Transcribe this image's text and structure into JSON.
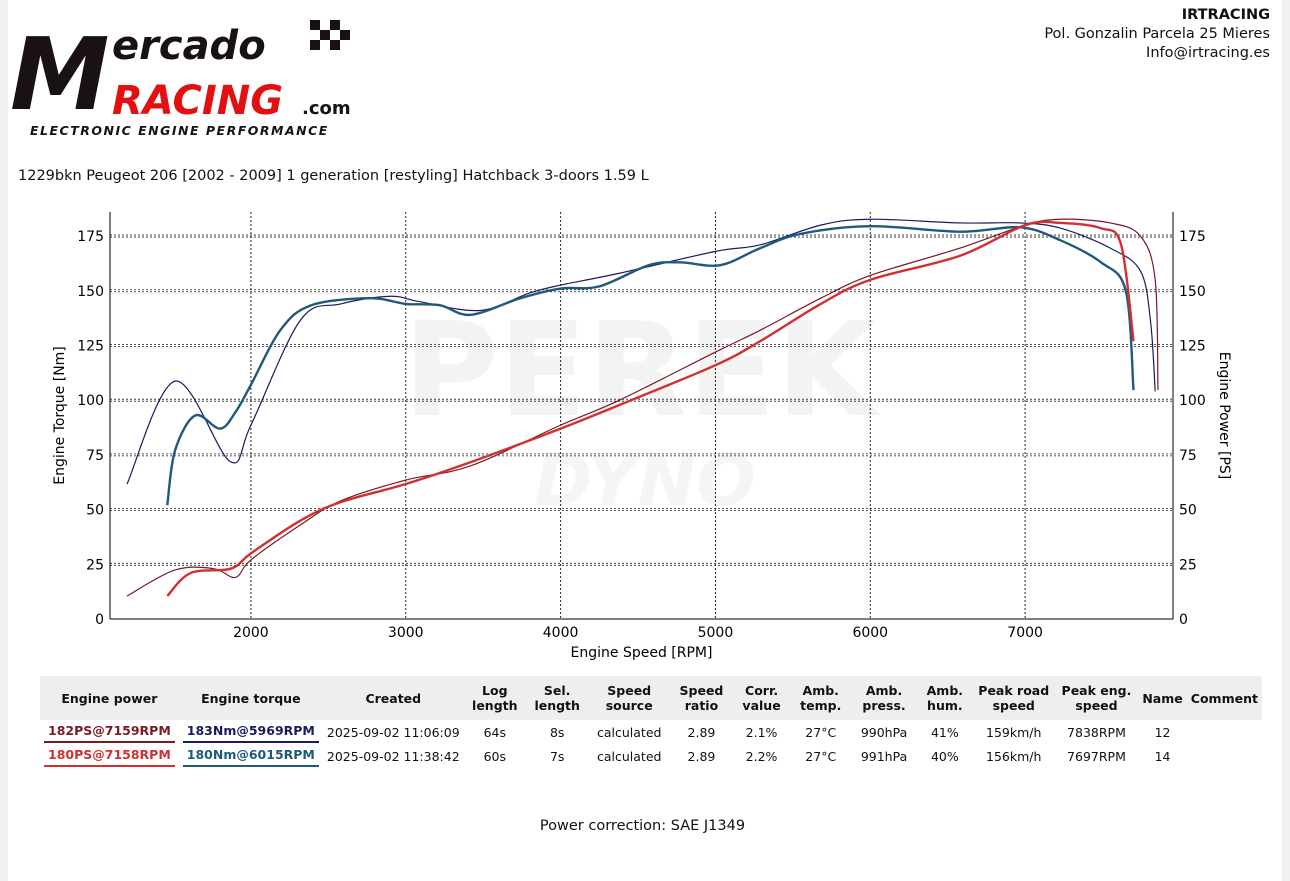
{
  "logo": {
    "text": "Mercado Racing .com",
    "tagline": "ELECTRONIC ENGINE PERFORMANCE"
  },
  "company": {
    "name": "IRTRACING",
    "address": "Pol. Gonzalin Parcela 25 Mieres",
    "email": "Info@irtracing.es"
  },
  "vehicle_title": "1229bkn Peugeot 206 [2002 - 2009] 1 generation [restyling] Hatchback 3-doors 1.59 L",
  "watermark": "PEREK DYNO",
  "chart_data": {
    "type": "line",
    "xlabel": "Engine Speed [RPM]",
    "ylabel_left": "Engine Torque [Nm]",
    "ylabel_right": "Engine Power [PS]",
    "xlim": [
      1090,
      7955
    ],
    "ylim": [
      0,
      186
    ],
    "xticks": [
      2000,
      3000,
      4000,
      5000,
      6000,
      7000
    ],
    "yticks": [
      0,
      25,
      50,
      75,
      100,
      125,
      150,
      175
    ],
    "grid": true,
    "series": [
      {
        "color": "#1a1a5e",
        "run": 1,
        "kind": "torque",
        "x": [
          1200,
          1510,
          1865,
          2000,
          2320,
          2580,
          2900,
          3090,
          3480,
          3800,
          4000,
          4380,
          5000,
          5290,
          5680,
          6000,
          6580,
          6970,
          7230,
          7550,
          7745,
          7810,
          7840
        ],
        "y": [
          61.7,
          108.7,
          72,
          88.6,
          136.6,
          144,
          147.5,
          145,
          141,
          149,
          152.6,
          158,
          168,
          171,
          180,
          182.7,
          181,
          181,
          178.6,
          169.5,
          159,
          136,
          104
        ]
      },
      {
        "color": "#1f5a7a",
        "run": 2,
        "kind": "torque",
        "x": [
          1460,
          1510,
          1640,
          1800,
          1900,
          2000,
          2190,
          2390,
          2770,
          3000,
          3220,
          3420,
          3740,
          4000,
          4250,
          4570,
          4770,
          5030,
          5290,
          5550,
          6000,
          6580,
          6970,
          7230,
          7490,
          7650,
          7700
        ],
        "y": [
          52,
          77,
          93,
          87,
          94.5,
          107,
          132,
          143.4,
          146.6,
          144,
          143.4,
          139,
          146.6,
          151,
          152,
          161.7,
          163,
          161.7,
          169.5,
          176,
          179.5,
          177,
          179,
          173,
          163,
          150,
          104.6
        ]
      },
      {
        "color": "#7a1a22",
        "run": 1,
        "kind": "power",
        "x": [
          1200,
          1510,
          1760,
          1900,
          2000,
          2320,
          2580,
          3000,
          3420,
          4000,
          4380,
          5000,
          5290,
          5680,
          6000,
          6580,
          7000,
          7230,
          7550,
          7745,
          7840,
          7858
        ],
        "y": [
          10.5,
          22.4,
          23,
          19,
          27,
          43,
          54,
          63.5,
          70,
          88.6,
          100,
          122,
          132,
          146.6,
          157,
          169.5,
          180,
          182.7,
          181,
          175,
          155,
          104.6
        ]
      },
      {
        "color": "#d03030",
        "run": 2,
        "kind": "power",
        "x": [
          1460,
          1610,
          1870,
          2000,
          2320,
          2580,
          3000,
          3420,
          4000,
          4380,
          5000,
          5290,
          5680,
          6000,
          6580,
          7000,
          7230,
          7490,
          7620,
          7700
        ],
        "y": [
          10.5,
          21,
          23,
          30,
          45,
          53.4,
          61.7,
          71.7,
          87,
          97.8,
          116,
          127,
          144,
          155,
          166,
          180,
          181,
          178.6,
          171,
          127
        ]
      }
    ]
  },
  "table": {
    "headers": [
      "Engine power",
      "Engine torque",
      "Created",
      "Log length",
      "Sel. length",
      "Speed source",
      "Speed ratio",
      "Corr. value",
      "Amb. temp.",
      "Amb. press.",
      "Amb. hum.",
      "Peak road speed",
      "Peak eng. speed",
      "Name",
      "Comment"
    ],
    "rows": [
      {
        "power": "182PS@7159RPM",
        "torque": "183Nm@5969RPM",
        "power_color": "#7a1a22",
        "torque_color": "#1a1a5e",
        "cells": [
          "2025-09-02 11:06:09",
          "64s",
          "8s",
          "calculated",
          "2.89",
          "2.1%",
          "27°C",
          "990hPa",
          "41%",
          "159km/h",
          "7838RPM",
          "12",
          ""
        ]
      },
      {
        "power": "180PS@7158RPM",
        "torque": "180Nm@6015RPM",
        "power_color": "#d03030",
        "torque_color": "#1f5a7a",
        "cells": [
          "2025-09-02 11:38:42",
          "60s",
          "7s",
          "calculated",
          "2.89",
          "2.2%",
          "27°C",
          "991hPa",
          "40%",
          "156km/h",
          "7697RPM",
          "14",
          ""
        ]
      }
    ]
  },
  "footer": {
    "correction": "Power correction: SAE J1349"
  }
}
